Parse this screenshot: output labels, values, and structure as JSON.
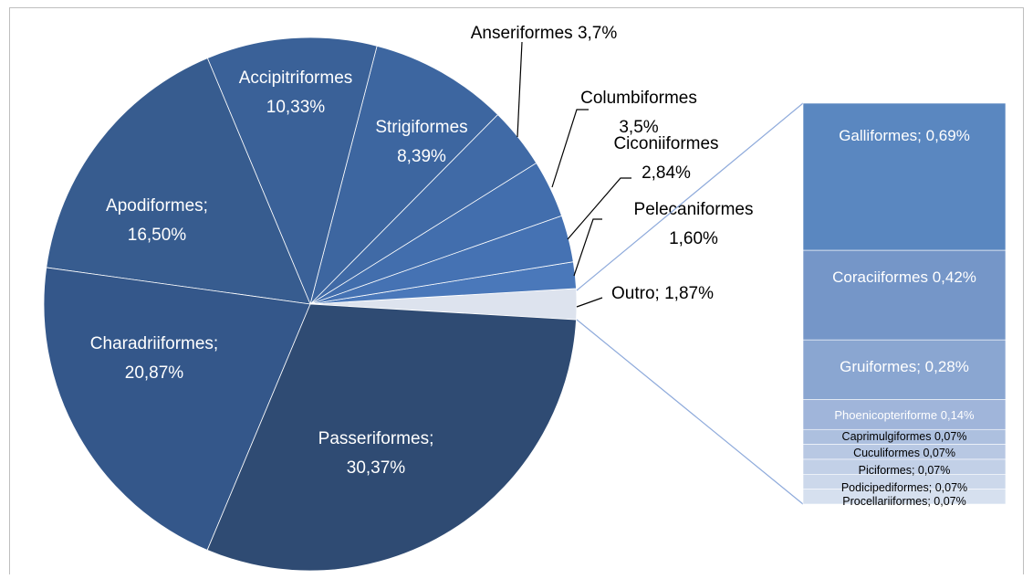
{
  "chart_data": [
    {
      "type": "pie",
      "categories": [
        "Outro;",
        "Pelecaniformes",
        "Ciconiiformes",
        "Columbiformes",
        "Anseriformes",
        "Strigiformes",
        "Accipitriformes",
        "Apodiformes;",
        "Charadriiformes;",
        "Passeriformes;"
      ],
      "values": [
        1.87,
        1.6,
        2.84,
        3.5,
        3.7,
        8.39,
        10.33,
        16.5,
        20.87,
        30.37
      ],
      "value_labels": [
        "1,87%",
        "1,60%",
        "2,84%",
        "3,5%",
        "3,7%",
        "8,39%",
        "10,33%",
        "16,50%",
        "20,87%",
        "30,37%"
      ],
      "colors": [
        "#dde3ee",
        "#4a78ba",
        "#4572b3",
        "#426ead",
        "#406aa6",
        "#3d66a0",
        "#3a6198",
        "#375c8f",
        "#34578a",
        "#2f4b73"
      ]
    },
    {
      "type": "bar",
      "categories": [
        "Galliformes;",
        "Coraciiformes",
        "Gruiformes;",
        "Phoenicopteriforme",
        "Caprimulgiformes",
        "Cuculiformes",
        "Piciformes;",
        "Podicipediformes;",
        "Procellariiformes;"
      ],
      "values": [
        0.69,
        0.42,
        0.28,
        0.14,
        0.07,
        0.07,
        0.07,
        0.07,
        0.07
      ],
      "value_labels": [
        "0,69%",
        "0,42%",
        "0,28%",
        "0,14%",
        "0,07%",
        "0,07%",
        "0,07%",
        "0,07%",
        "0,07%"
      ],
      "colors": [
        "#5a87c0",
        "#7596c8",
        "#8aa6d1",
        "#a0b5da",
        "#adc0df",
        "#b8c8e3",
        "#c2d0e7",
        "#ccd8eb",
        "#d6e0ef"
      ]
    }
  ]
}
